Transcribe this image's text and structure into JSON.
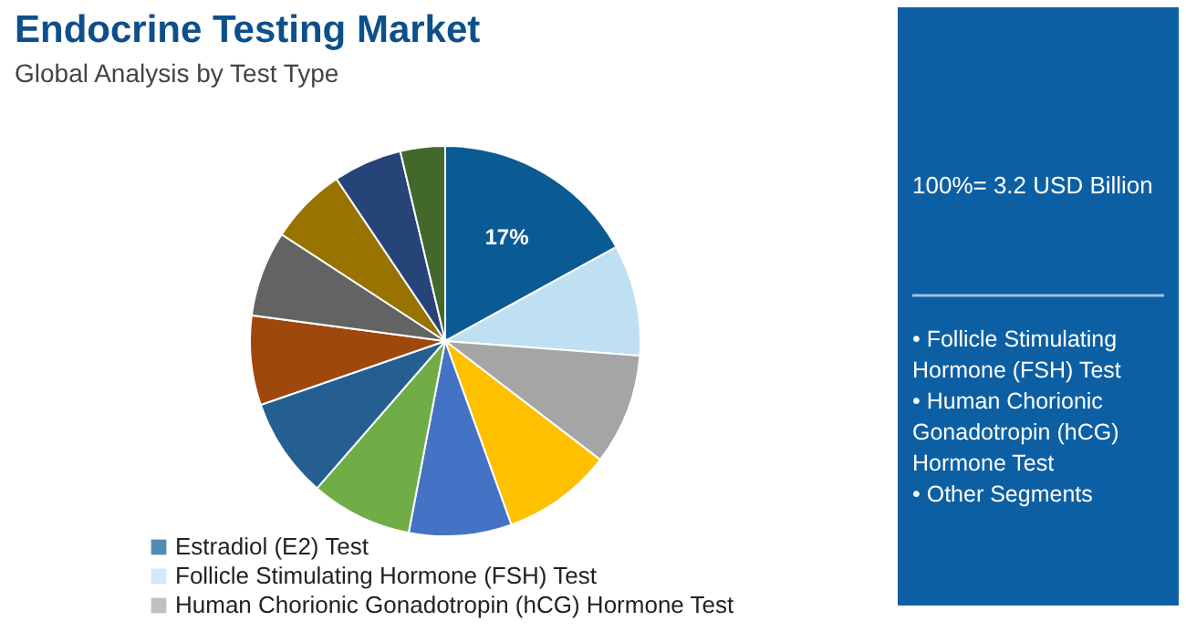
{
  "chart_data": {
    "type": "pie",
    "title": "Endocrine Testing Market",
    "subtitle": "Global Analysis by Test Type",
    "categories": [
      "Estradiol (E2) Test",
      "Follicle Stimulating Hormone (FSH) Test",
      "Human Chorionic Gonadotropin (hCG) Hormone Test",
      null,
      null,
      null,
      null,
      null,
      null,
      null,
      null,
      null
    ],
    "values": [
      17,
      9.2,
      9.2,
      9.1,
      8.5,
      8.4,
      8.3,
      7.4,
      7.1,
      6.4,
      5.7,
      3.7
    ],
    "colors": [
      "#0a5a94",
      "#bfe0f2",
      "#a5a5a5",
      "#ffc000",
      "#4472c4",
      "#70ad47",
      "#255e91",
      "#9e480e",
      "#636363",
      "#997300",
      "#264478",
      "#43682b"
    ],
    "value_labels": [
      "17%",
      null,
      null,
      null,
      null,
      null,
      null,
      null,
      null,
      null,
      null,
      null
    ],
    "legend": "bottom left",
    "annotations": [
      "100%= 3.2 USD Billion",
      "• Follicle Stimulating Hormone (FSH) Test",
      "• Human Chorionic Gonadotropin (hCG) Hormone Test",
      "• Other Segments"
    ]
  }
}
